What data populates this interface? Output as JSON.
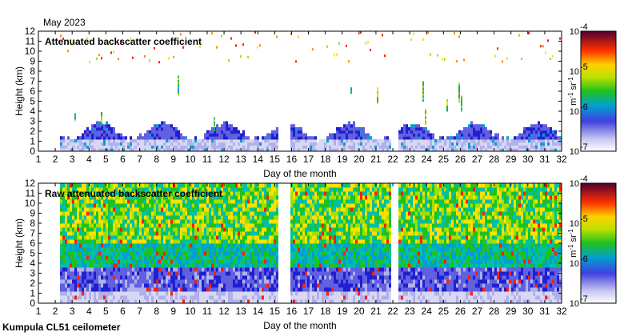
{
  "page": {
    "header": "May 2023",
    "footer": "Kumpula CL51 ceilometer"
  },
  "chart_data": [
    {
      "type": "heatmap",
      "title": "Attenuated backscatter coefficient",
      "xlabel": "Day of the month",
      "ylabel": "Height (km)",
      "xlim": [
        1,
        32
      ],
      "ylim": [
        0,
        12
      ],
      "xticks": [
        "1",
        "2",
        "3",
        "4",
        "5",
        "6",
        "7",
        "8",
        "9",
        "10",
        "11",
        "12",
        "13",
        "14",
        "15",
        "16",
        "17",
        "18",
        "19",
        "20",
        "21",
        "22",
        "23",
        "24",
        "25",
        "26",
        "27",
        "28",
        "29",
        "30",
        "31",
        "32"
      ],
      "yticks": [
        "0",
        "1",
        "2",
        "3",
        "4",
        "5",
        "6",
        "7",
        "8",
        "9",
        "10",
        "11",
        "12"
      ],
      "data_gaps_days": [
        [
          15.2,
          15.9
        ],
        [
          21.9,
          22.2
        ]
      ],
      "colorbar": {
        "scale": "log",
        "range": [
          1e-07,
          0.0001
        ],
        "ticks": [
          "10",
          "10",
          "10",
          "10"
        ],
        "tick_exponents": [
          "-7",
          "-6",
          "-5",
          "-4"
        ],
        "unit_parts": [
          "m",
          "-1",
          " sr",
          "-1"
        ]
      }
    },
    {
      "type": "heatmap",
      "title": "Raw attenuated backscatter coefficient",
      "xlabel": "Day of the month",
      "ylabel": "Height (km)",
      "xlim": [
        1,
        32
      ],
      "ylim": [
        0,
        12
      ],
      "xticks": [
        "1",
        "2",
        "3",
        "4",
        "5",
        "6",
        "7",
        "8",
        "9",
        "10",
        "11",
        "12",
        "13",
        "14",
        "15",
        "16",
        "17",
        "18",
        "19",
        "20",
        "21",
        "22",
        "23",
        "24",
        "25",
        "26",
        "27",
        "28",
        "29",
        "30",
        "31",
        "32"
      ],
      "yticks": [
        "0",
        "1",
        "2",
        "3",
        "4",
        "5",
        "6",
        "7",
        "8",
        "9",
        "10",
        "11",
        "12"
      ],
      "data_gaps_days": [
        [
          15.2,
          15.9
        ],
        [
          21.9,
          22.2
        ]
      ],
      "colorbar": {
        "scale": "log",
        "range": [
          1e-07,
          0.0001
        ],
        "ticks": [
          "10",
          "10",
          "10",
          "10"
        ],
        "tick_exponents": [
          "-7",
          "-6",
          "-5",
          "-4"
        ],
        "unit_parts": [
          "m",
          "-1",
          " sr",
          "-1"
        ]
      }
    }
  ]
}
